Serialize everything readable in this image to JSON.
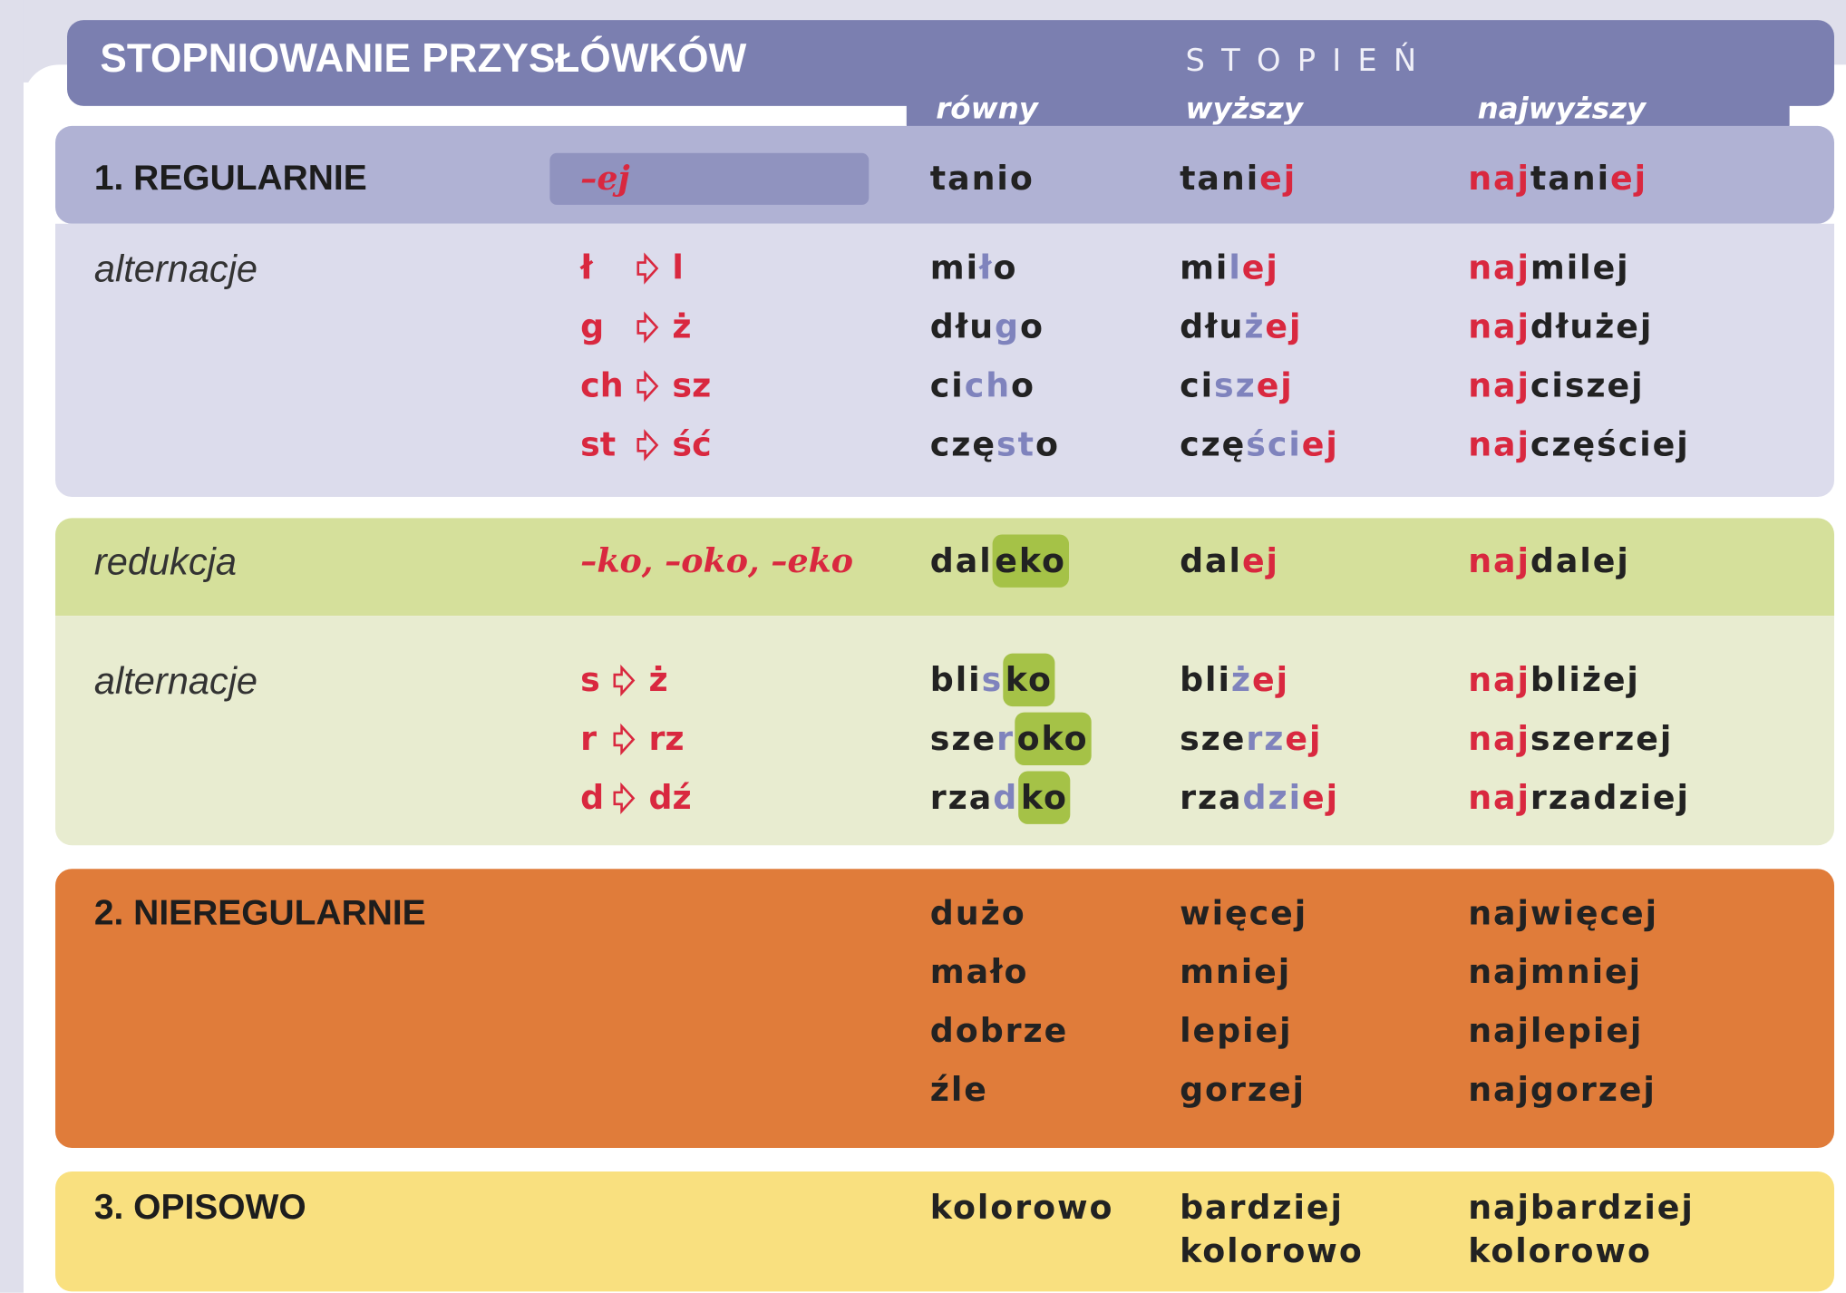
{
  "header": {
    "title": "STOPNIOWANIE PRZYSŁÓWKÓW",
    "group_label": "STOPIEŃ",
    "columns": [
      "równy",
      "wyższy",
      "najwyższy"
    ]
  },
  "bands": [
    {
      "label": "1. REGULARNIE",
      "label_style": "bold",
      "suffix": "–ej",
      "rows": [
        {
          "words": [
            [
              [
                "tanio",
                "k"
              ]
            ],
            [
              [
                "tani",
                "k"
              ],
              [
                "ej",
                "r"
              ]
            ],
            [
              [
                "naj",
                "r"
              ],
              [
                "tani",
                "k"
              ],
              [
                "ej",
                "r"
              ]
            ]
          ]
        }
      ]
    },
    {
      "label": "alternacje",
      "label_style": "italic",
      "rows": [
        {
          "rule": [
            "ł",
            "l"
          ],
          "words": [
            [
              [
                "mi",
                "k"
              ],
              [
                "ł",
                "b"
              ],
              [
                "o",
                "k"
              ]
            ],
            [
              [
                "mi",
                "k"
              ],
              [
                "l",
                "b"
              ],
              [
                "ej",
                "r"
              ]
            ],
            [
              [
                "naj",
                "r"
              ],
              [
                "milej",
                "k"
              ]
            ]
          ]
        },
        {
          "rule": [
            "g",
            "ż"
          ],
          "words": [
            [
              [
                "dłu",
                "k"
              ],
              [
                "g",
                "b"
              ],
              [
                "o",
                "k"
              ]
            ],
            [
              [
                "dłu",
                "k"
              ],
              [
                "ż",
                "b"
              ],
              [
                "ej",
                "r"
              ]
            ],
            [
              [
                "naj",
                "r"
              ],
              [
                "dłużej",
                "k"
              ]
            ]
          ]
        },
        {
          "rule": [
            "ch",
            "sz"
          ],
          "words": [
            [
              [
                "ci",
                "k"
              ],
              [
                "ch",
                "b"
              ],
              [
                "o",
                "k"
              ]
            ],
            [
              [
                "ci",
                "k"
              ],
              [
                "sz",
                "b"
              ],
              [
                "ej",
                "r"
              ]
            ],
            [
              [
                "naj",
                "r"
              ],
              [
                "ciszej",
                "k"
              ]
            ]
          ]
        },
        {
          "rule": [
            "st",
            "ść"
          ],
          "words": [
            [
              [
                "czę",
                "k"
              ],
              [
                "st",
                "b"
              ],
              [
                "o",
                "k"
              ]
            ],
            [
              [
                "czę",
                "k"
              ],
              [
                "ści",
                "b"
              ],
              [
                "ej",
                "r"
              ]
            ],
            [
              [
                "naj",
                "r"
              ],
              [
                "częściej",
                "k"
              ]
            ]
          ]
        }
      ]
    },
    {
      "label": "redukcja",
      "label_style": "italic",
      "suffix": "–ko, –oko, –eko",
      "rows": [
        {
          "words": [
            [
              [
                "dal",
                "k"
              ],
              [
                "eko",
                "h"
              ]
            ],
            [
              [
                "dal",
                "k"
              ],
              [
                "ej",
                "r"
              ]
            ],
            [
              [
                "naj",
                "r"
              ],
              [
                "dalej",
                "k"
              ]
            ]
          ]
        }
      ]
    },
    {
      "label": "alternacje",
      "label_style": "italic",
      "rows": [
        {
          "rule": [
            "s",
            "ż"
          ],
          "words": [
            [
              [
                "bli",
                "k"
              ],
              [
                "s",
                "b"
              ],
              [
                "ko",
                "h"
              ]
            ],
            [
              [
                "bli",
                "k"
              ],
              [
                "ż",
                "b"
              ],
              [
                "ej",
                "r"
              ]
            ],
            [
              [
                "naj",
                "r"
              ],
              [
                "bliżej",
                "k"
              ]
            ]
          ]
        },
        {
          "rule": [
            "r",
            "rz"
          ],
          "words": [
            [
              [
                "sze",
                "k"
              ],
              [
                "r",
                "b"
              ],
              [
                "oko",
                "h"
              ]
            ],
            [
              [
                "sze",
                "k"
              ],
              [
                "rz",
                "b"
              ],
              [
                "ej",
                "r"
              ]
            ],
            [
              [
                "naj",
                "r"
              ],
              [
                "szerzej",
                "k"
              ]
            ]
          ]
        },
        {
          "rule": [
            "d",
            "dź"
          ],
          "words": [
            [
              [
                "rza",
                "k"
              ],
              [
                "d",
                "b"
              ],
              [
                "ko",
                "h"
              ]
            ],
            [
              [
                "rza",
                "k"
              ],
              [
                "dzi",
                "b"
              ],
              [
                "ej",
                "r"
              ]
            ],
            [
              [
                "naj",
                "r"
              ],
              [
                "rzadziej",
                "k"
              ]
            ]
          ]
        }
      ]
    },
    {
      "label": "2. NIEREGULARNIE",
      "label_style": "bold",
      "rows": [
        {
          "words": [
            [
              [
                "dużo",
                "k"
              ]
            ],
            [
              [
                "więcej",
                "k"
              ]
            ],
            [
              [
                "najwięcej",
                "k"
              ]
            ]
          ]
        },
        {
          "words": [
            [
              [
                "mało",
                "k"
              ]
            ],
            [
              [
                "mniej",
                "k"
              ]
            ],
            [
              [
                "najmniej",
                "k"
              ]
            ]
          ]
        },
        {
          "words": [
            [
              [
                "dobrze",
                "k"
              ]
            ],
            [
              [
                "lepiej",
                "k"
              ]
            ],
            [
              [
                "najlepiej",
                "k"
              ]
            ]
          ]
        },
        {
          "words": [
            [
              [
                "źle",
                "k"
              ]
            ],
            [
              [
                "gorzej",
                "k"
              ]
            ],
            [
              [
                "najgorzej",
                "k"
              ]
            ]
          ]
        }
      ]
    },
    {
      "label": "3. OPISOWO",
      "label_style": "bold",
      "rows": [
        {
          "words": [
            [
              [
                "kolorowo",
                "k"
              ]
            ],
            [
              [
                "bardziej",
                "k"
              ]
            ],
            [
              [
                "najbardziej",
                "k"
              ]
            ]
          ]
        },
        {
          "words": [
            [],
            [
              [
                "kolorowo",
                "k"
              ]
            ],
            [
              [
                "kolorowo",
                "k"
              ]
            ]
          ]
        }
      ]
    }
  ]
}
